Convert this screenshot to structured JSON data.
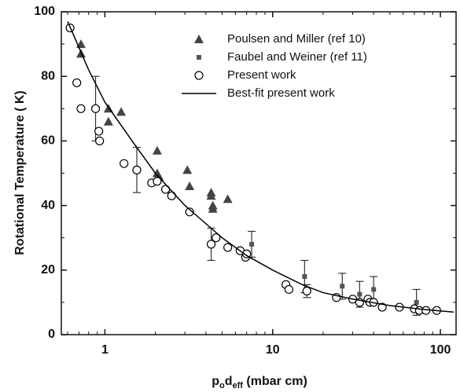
{
  "chart_data": {
    "type": "scatter",
    "xscale": "log",
    "xlabel": [
      "p",
      "o",
      "d",
      "eff",
      " (mbar cm)"
    ],
    "ylabel": "Rotational Temperature  ( K)",
    "xlim": [
      0.55,
      124
    ],
    "ylim": [
      0,
      100
    ],
    "xticks": [
      1,
      10,
      100
    ],
    "xminorticks": [
      0.6,
      0.7,
      0.8,
      0.9,
      2,
      3,
      4,
      5,
      6,
      7,
      8,
      9,
      20,
      30,
      40,
      50,
      60,
      70,
      80,
      90
    ],
    "yticks": [
      0,
      20,
      40,
      60,
      80,
      100
    ],
    "yminorticks": [
      10,
      30,
      50,
      70,
      90
    ],
    "legend": "upper right",
    "series": [
      {
        "name": "Poulsen and Miller (ref 10)",
        "marker": "triangle",
        "color": "#444444",
        "x": [
          0.72,
          0.72,
          1.05,
          1.05,
          1.25,
          2.05,
          2.05,
          2.1,
          3.1,
          3.2,
          4.3,
          4.3,
          4.4,
          4.4,
          5.4
        ],
        "values": [
          90,
          87,
          70,
          66,
          69,
          57,
          50,
          49,
          51,
          46,
          44,
          43,
          40,
          39,
          42
        ]
      },
      {
        "name": "Faubel and Weiner (ref 11)",
        "marker": "square",
        "color": "#555555",
        "x": [
          7.5,
          15.5,
          26,
          33,
          40,
          72
        ],
        "values": [
          28,
          18,
          15,
          12.5,
          14,
          10
        ],
        "errors": [
          4,
          5,
          4,
          4,
          4,
          4
        ]
      },
      {
        "name": "Present work",
        "marker": "circle",
        "color": "#000000",
        "x": [
          0.62,
          0.68,
          0.72,
          0.88,
          0.92,
          0.93,
          1.3,
          1.55,
          1.9,
          2.05,
          2.3,
          2.5,
          3.2,
          4.3,
          4.6,
          5.4,
          6.4,
          6.9,
          7,
          12,
          12.5,
          16,
          24,
          30,
          33,
          37,
          38,
          40,
          45,
          57,
          70,
          75,
          82,
          95
        ],
        "values": [
          95,
          78,
          70,
          70,
          63,
          60,
          53,
          51,
          47,
          47.5,
          45,
          43,
          38,
          28,
          30,
          27,
          26,
          24,
          25,
          15.5,
          14,
          13.5,
          11.5,
          11,
          10,
          11,
          10,
          10,
          8.5,
          8.5,
          8,
          7.5,
          7.5,
          7.5
        ],
        "errors": [
          null,
          null,
          null,
          10,
          null,
          null,
          null,
          7,
          null,
          null,
          null,
          null,
          null,
          5,
          null,
          null,
          null,
          null,
          null,
          null,
          null,
          2,
          null,
          null,
          null,
          null,
          null,
          null,
          null,
          null,
          null,
          null,
          null,
          null
        ]
      },
      {
        "name": "Best-fit present work",
        "marker": "line",
        "color": "#000000",
        "x": [
          0.6,
          0.8,
          1,
          1.5,
          2,
          3,
          5,
          7,
          10,
          15,
          20,
          30,
          50,
          80,
          120
        ],
        "values": [
          97,
          82,
          72,
          59,
          50,
          40,
          30,
          24.5,
          20,
          15.5,
          13,
          11,
          9,
          7.8,
          7
        ]
      }
    ]
  }
}
